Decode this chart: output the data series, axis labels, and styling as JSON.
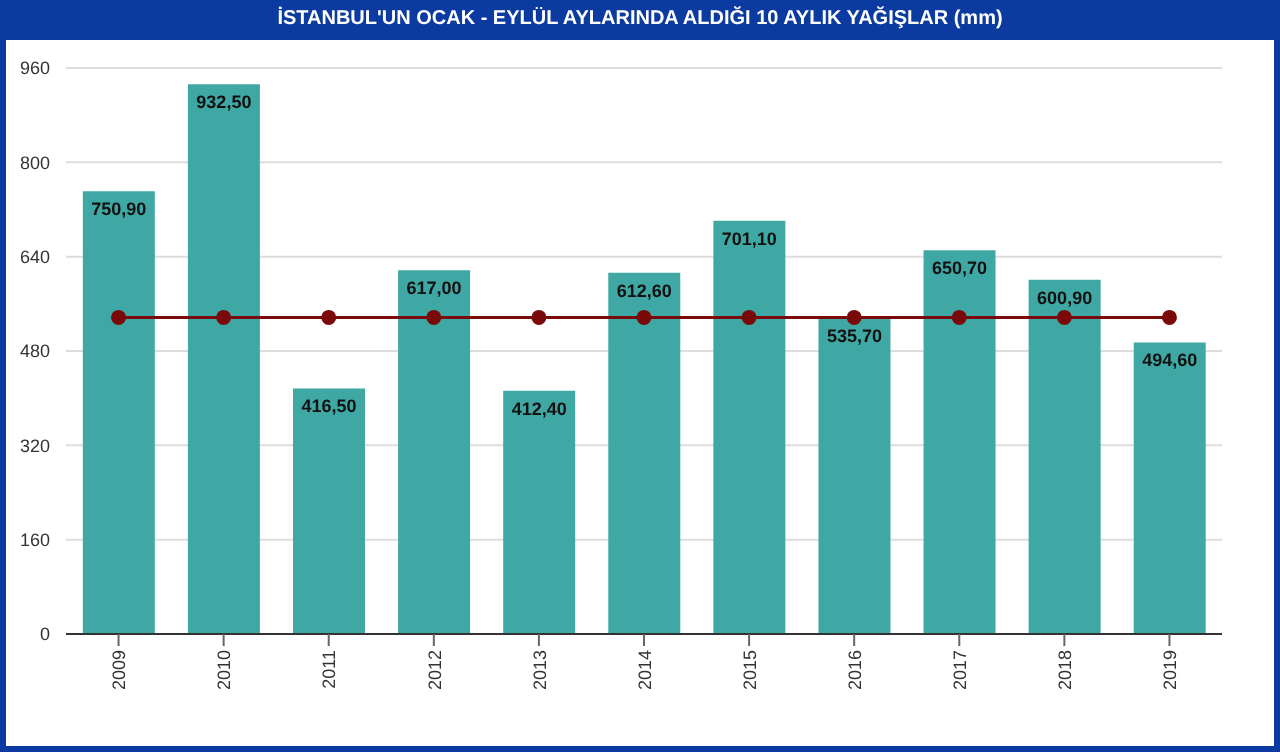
{
  "chart_data": {
    "type": "bar",
    "title": "İSTANBUL'UN OCAK - EYLÜL AYLARINDA ALDIĞI 10 AYLIK YAĞIŞLAR (mm)",
    "categories": [
      "2009",
      "2010",
      "2011",
      "2012",
      "2013",
      "2014",
      "2015",
      "2016",
      "2017",
      "2018",
      "2019"
    ],
    "series": [
      {
        "color": "#3fa8a4",
        "values": [
          750.9,
          932.5,
          416.5,
          617,
          412.4,
          612.6,
          701.1,
          535.7,
          650.7,
          600.9,
          494.6
        ],
        "value_labels": [
          "750,90",
          "932,50",
          "416,50",
          "617,00",
          "412,40",
          "612,60",
          "701,10",
          "535,70",
          "650,70",
          "600,90",
          "494,60"
        ]
      },
      {
        "type": "line",
        "color": "#7a0a0a",
        "values": [
          537,
          537,
          537,
          537,
          537,
          537,
          537,
          537,
          537,
          537,
          537
        ],
        "marker": "circle"
      }
    ],
    "ylim": [
      0,
      960
    ],
    "yticks": [
      0,
      160,
      320,
      480,
      640,
      800,
      960
    ],
    "grid": "y",
    "legend": false
  }
}
